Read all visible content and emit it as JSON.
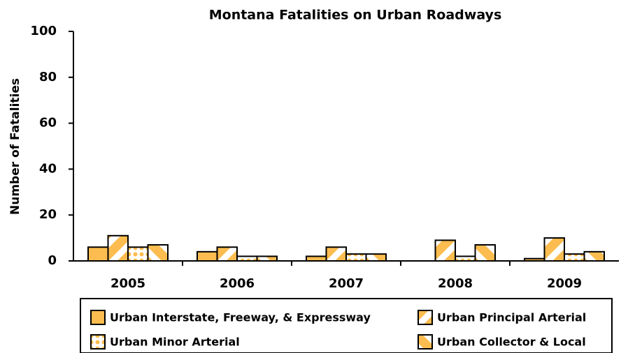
{
  "chart_data": {
    "type": "bar",
    "title": "Montana Fatalities on Urban Roadways",
    "y_label": "Number of Fatalities",
    "categories": [
      "2005",
      "2006",
      "2007",
      "2008",
      "2009"
    ],
    "series": [
      {
        "name": "Urban Interstate, Freeway, & Expressway",
        "color": "#fcbc4f",
        "pattern": "solid",
        "values": [
          6,
          4,
          2,
          0,
          1
        ]
      },
      {
        "name": "Urban Principal Arterial",
        "color": "#fcbc4f",
        "pattern": "diagonal-down",
        "values": [
          11,
          6,
          6,
          9,
          10
        ]
      },
      {
        "name": "Urban Minor Arterial",
        "color": "#fcbc4f",
        "pattern": "dots",
        "values": [
          6,
          2,
          3,
          2,
          3
        ]
      },
      {
        "name": "Urban Collector & Local",
        "color": "#fcbc4f",
        "pattern": "diagonal-up",
        "values": [
          7,
          2,
          3,
          7,
          4
        ]
      }
    ],
    "ylim": [
      0,
      100
    ],
    "yticks": [
      0,
      20,
      40,
      60,
      80,
      100
    ],
    "grid": false
  }
}
